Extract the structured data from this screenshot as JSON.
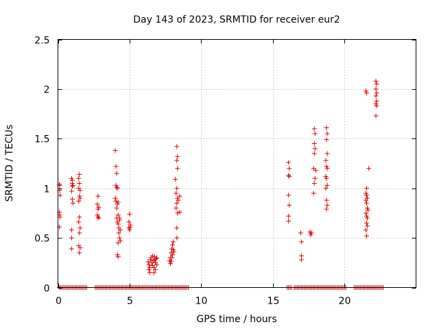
{
  "chart_data": {
    "type": "scatter",
    "title": "Day 143 of 2023, SRMTID for receiver eur2",
    "xlabel": "GPS time / hours",
    "ylabel": "SRMTID / TECUs",
    "xlim": [
      0,
      25
    ],
    "ylim": [
      0,
      2.5
    ],
    "x_ticks": [
      0,
      5,
      10,
      15,
      20
    ],
    "x_tick_labels": [
      "0",
      "5",
      "10",
      "15",
      "20"
    ],
    "y_ticks": [
      0,
      0.5,
      1,
      1.5,
      2,
      2.5
    ],
    "y_tick_labels": [
      "0",
      "0.5",
      "1",
      "1.5",
      "2",
      "2.5"
    ],
    "grid": true,
    "marker": "plus",
    "color": "#e00000",
    "series": [
      {
        "name": "SRMTID",
        "points": [
          [
            0.1,
            1.04
          ],
          [
            0.12,
            1.03
          ],
          [
            0.12,
            0.98
          ],
          [
            0.15,
            0.93
          ],
          [
            0.1,
            0.76
          ],
          [
            0.12,
            0.73
          ],
          [
            0.14,
            0.71
          ],
          [
            0.1,
            0.61
          ],
          [
            0.95,
            1.1
          ],
          [
            1.0,
            1.08
          ],
          [
            1.0,
            1.05
          ],
          [
            1.05,
            1.03
          ],
          [
            1.0,
            1.02
          ],
          [
            0.95,
            0.97
          ],
          [
            1.0,
            0.89
          ],
          [
            1.05,
            0.85
          ],
          [
            0.95,
            0.58
          ],
          [
            0.95,
            0.5
          ],
          [
            0.95,
            0.39
          ],
          [
            1.5,
            1.14
          ],
          [
            1.45,
            1.1
          ],
          [
            1.5,
            1.05
          ],
          [
            1.45,
            1.0
          ],
          [
            1.55,
            0.98
          ],
          [
            1.5,
            0.92
          ],
          [
            1.45,
            0.87
          ],
          [
            1.55,
            0.9
          ],
          [
            1.5,
            0.71
          ],
          [
            1.45,
            0.66
          ],
          [
            1.55,
            0.6
          ],
          [
            1.5,
            0.55
          ],
          [
            1.45,
            0.42
          ],
          [
            1.55,
            0.4
          ],
          [
            1.5,
            0.35
          ],
          [
            2.8,
            0.92
          ],
          [
            2.75,
            0.84
          ],
          [
            2.85,
            0.81
          ],
          [
            2.8,
            0.79
          ],
          [
            2.75,
            0.73
          ],
          [
            2.8,
            0.71
          ],
          [
            2.85,
            0.7
          ],
          [
            4.0,
            1.38
          ],
          [
            4.05,
            1.22
          ],
          [
            4.1,
            1.15
          ],
          [
            4.05,
            1.03
          ],
          [
            4.1,
            1.01
          ],
          [
            4.15,
            1.0
          ],
          [
            4.0,
            0.9
          ],
          [
            4.05,
            0.87
          ],
          [
            4.15,
            0.84
          ],
          [
            4.2,
            0.86
          ],
          [
            4.1,
            0.8
          ],
          [
            4.2,
            0.73
          ],
          [
            4.1,
            0.7
          ],
          [
            4.3,
            0.7
          ],
          [
            4.15,
            0.66
          ],
          [
            4.2,
            0.64
          ],
          [
            4.3,
            0.68
          ],
          [
            4.25,
            0.6
          ],
          [
            4.35,
            0.58
          ],
          [
            4.25,
            0.55
          ],
          [
            4.3,
            0.5
          ],
          [
            4.35,
            0.47
          ],
          [
            4.2,
            0.45
          ],
          [
            4.15,
            0.33
          ],
          [
            4.2,
            0.31
          ],
          [
            5.0,
            0.74
          ],
          [
            4.95,
            0.66
          ],
          [
            5.05,
            0.63
          ],
          [
            4.95,
            0.6
          ],
          [
            5.0,
            0.58
          ],
          [
            5.05,
            0.61
          ],
          [
            6.3,
            0.26
          ],
          [
            6.35,
            0.23
          ],
          [
            6.4,
            0.2
          ],
          [
            6.45,
            0.28
          ],
          [
            6.35,
            0.18
          ],
          [
            6.4,
            0.15
          ],
          [
            6.5,
            0.3
          ],
          [
            6.55,
            0.25
          ],
          [
            6.6,
            0.22
          ],
          [
            6.6,
            0.32
          ],
          [
            6.65,
            0.27
          ],
          [
            6.7,
            0.2
          ],
          [
            6.75,
            0.31
          ],
          [
            6.8,
            0.25
          ],
          [
            6.8,
            0.18
          ],
          [
            6.85,
            0.29
          ],
          [
            6.9,
            0.23
          ],
          [
            6.7,
            0.15
          ],
          [
            6.75,
            0.28
          ],
          [
            6.9,
            0.3
          ],
          [
            7.8,
            0.27
          ],
          [
            7.85,
            0.3
          ],
          [
            7.9,
            0.35
          ],
          [
            7.95,
            0.39
          ],
          [
            8.0,
            0.43
          ],
          [
            8.05,
            0.46
          ],
          [
            7.85,
            0.24
          ],
          [
            7.9,
            0.26
          ],
          [
            8.0,
            0.33
          ],
          [
            8.05,
            0.38
          ],
          [
            7.95,
            0.3
          ],
          [
            8.1,
            0.36
          ],
          [
            8.3,
            1.42
          ],
          [
            8.35,
            1.32
          ],
          [
            8.3,
            1.28
          ],
          [
            8.35,
            1.2
          ],
          [
            8.2,
            1.09
          ],
          [
            8.3,
            1.0
          ],
          [
            8.25,
            0.95
          ],
          [
            8.35,
            0.9
          ],
          [
            8.4,
            0.88
          ],
          [
            8.5,
            0.92
          ],
          [
            8.3,
            0.85
          ],
          [
            8.25,
            0.8
          ],
          [
            8.35,
            0.75
          ],
          [
            8.5,
            0.76
          ],
          [
            8.3,
            0.6
          ],
          [
            8.3,
            0.5
          ],
          [
            16.1,
            1.26
          ],
          [
            16.15,
            1.2
          ],
          [
            16.1,
            1.13
          ],
          [
            16.15,
            1.12
          ],
          [
            16.1,
            0.93
          ],
          [
            16.15,
            0.83
          ],
          [
            16.1,
            0.72
          ],
          [
            16.1,
            0.67
          ],
          [
            16.95,
            0.55
          ],
          [
            17.0,
            0.46
          ],
          [
            17.0,
            0.32
          ],
          [
            17.0,
            0.28
          ],
          [
            17.6,
            0.56
          ],
          [
            17.65,
            0.53
          ],
          [
            17.7,
            0.55
          ],
          [
            17.9,
            1.6
          ],
          [
            17.95,
            1.55
          ],
          [
            17.9,
            1.45
          ],
          [
            17.95,
            1.4
          ],
          [
            17.9,
            1.35
          ],
          [
            17.85,
            1.2
          ],
          [
            18.0,
            1.18
          ],
          [
            17.95,
            1.1
          ],
          [
            17.9,
            1.05
          ],
          [
            17.85,
            0.95
          ],
          [
            18.75,
            1.61
          ],
          [
            18.8,
            1.55
          ],
          [
            18.75,
            1.49
          ],
          [
            18.8,
            1.35
          ],
          [
            18.7,
            1.28
          ],
          [
            18.75,
            1.22
          ],
          [
            18.8,
            1.2
          ],
          [
            18.7,
            1.12
          ],
          [
            18.75,
            1.1
          ],
          [
            18.8,
            1.03
          ],
          [
            18.7,
            1.0
          ],
          [
            18.75,
            0.88
          ],
          [
            18.8,
            0.83
          ],
          [
            18.75,
            0.79
          ],
          [
            21.5,
            1.98
          ],
          [
            21.55,
            1.96
          ],
          [
            21.7,
            1.2
          ],
          [
            21.55,
            1.0
          ],
          [
            21.5,
            0.95
          ],
          [
            21.55,
            0.93
          ],
          [
            21.6,
            0.9
          ],
          [
            21.5,
            0.88
          ],
          [
            21.55,
            0.85
          ],
          [
            21.6,
            0.8
          ],
          [
            21.65,
            0.78
          ],
          [
            21.5,
            0.75
          ],
          [
            21.55,
            0.72
          ],
          [
            21.6,
            0.7
          ],
          [
            21.55,
            0.65
          ],
          [
            21.6,
            0.62
          ],
          [
            21.5,
            0.58
          ],
          [
            21.55,
            0.52
          ],
          [
            22.2,
            2.08
          ],
          [
            22.25,
            2.05
          ],
          [
            22.2,
            2.0
          ],
          [
            22.25,
            1.96
          ],
          [
            22.2,
            1.93
          ],
          [
            22.25,
            1.88
          ],
          [
            22.2,
            1.85
          ],
          [
            22.25,
            1.83
          ],
          [
            22.2,
            1.73
          ]
        ],
        "zero_points_x": [
          0.1,
          0.2,
          0.3,
          0.4,
          0.5,
          0.6,
          0.7,
          0.8,
          0.9,
          1.0,
          1.1,
          1.2,
          1.3,
          1.4,
          1.5,
          1.6,
          1.7,
          1.8,
          1.9,
          2.0,
          2.6,
          2.7,
          2.8,
          2.9,
          3.0,
          3.1,
          3.2,
          3.3,
          3.4,
          3.5,
          3.6,
          3.7,
          3.8,
          3.9,
          4.0,
          4.1,
          4.2,
          4.3,
          4.4,
          4.5,
          4.6,
          4.7,
          4.8,
          4.9,
          5.0,
          5.1,
          5.2,
          5.3,
          5.4,
          5.5,
          5.6,
          5.7,
          5.8,
          5.9,
          6.0,
          6.1,
          6.2,
          6.3,
          6.4,
          6.5,
          6.6,
          6.7,
          6.8,
          6.9,
          7.0,
          7.1,
          7.2,
          7.3,
          7.4,
          7.5,
          7.6,
          7.7,
          7.8,
          7.9,
          8.0,
          8.1,
          8.2,
          8.3,
          8.4,
          8.5,
          8.6,
          8.7,
          8.8,
          8.9,
          9.0,
          9.1,
          16.0,
          16.1,
          16.2,
          16.3,
          16.5,
          16.6,
          16.7,
          16.8,
          16.9,
          17.0,
          17.1,
          17.2,
          17.3,
          17.4,
          17.5,
          17.6,
          17.7,
          17.8,
          17.9,
          18.0,
          18.1,
          18.2,
          18.3,
          18.4,
          18.5,
          18.6,
          18.7,
          18.8,
          18.9,
          19.0,
          19.1,
          19.2,
          19.3,
          19.4,
          19.5,
          19.6,
          19.7,
          19.8,
          19.9,
          20.0,
          20.1,
          20.7,
          20.8,
          20.9,
          21.0,
          21.1,
          21.2,
          21.3,
          21.4,
          21.5,
          21.6,
          21.7,
          21.8,
          21.9,
          22.0,
          22.1,
          22.2,
          22.3,
          22.4,
          22.5,
          22.6,
          22.7
        ]
      }
    ]
  }
}
